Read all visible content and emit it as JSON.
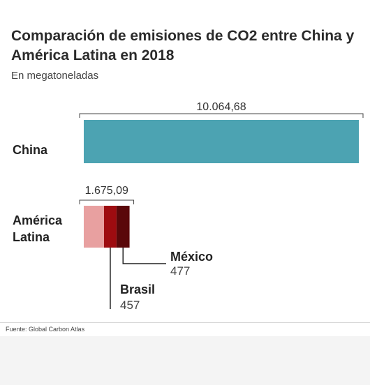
{
  "title": "Comparación de emisiones de CO2 entre China y América Latina en 2018",
  "subtitle": "En megatoneladas",
  "source": "Fuente: Global Carbon Atlas",
  "colors": {
    "china": "#4ca3b2",
    "latam_other": "#e8a0a0",
    "brasil": "#9e0c10",
    "mexico": "#5a080a"
  },
  "chart_data": {
    "type": "bar",
    "orientation": "horizontal",
    "stacked": true,
    "categories": [
      "China",
      "América\nLatina"
    ],
    "totals": [
      "10.064,68",
      "1.675,09"
    ],
    "total_values": [
      10064.68,
      1675.09
    ],
    "series": [
      {
        "key": "china",
        "values": [
          10064.68,
          0
        ]
      },
      {
        "key": "latam_other",
        "values": [
          0,
          741.09
        ]
      },
      {
        "name": "Brasil",
        "key": "brasil",
        "values": [
          0,
          457
        ],
        "label": "457"
      },
      {
        "name": "México",
        "key": "mexico",
        "values": [
          0,
          477
        ],
        "label": "477"
      }
    ],
    "xlim": [
      0,
      10064.68
    ],
    "legend": "none",
    "grid": false
  }
}
